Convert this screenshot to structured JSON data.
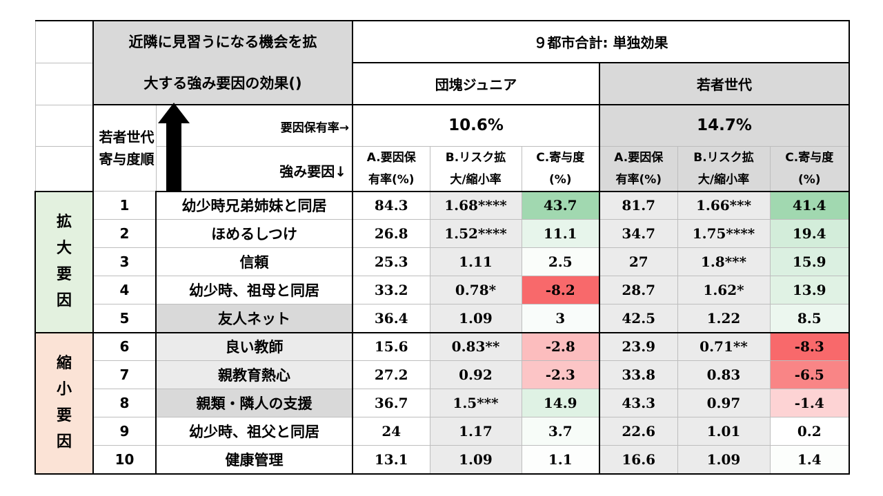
{
  "title_line1": "近隣に見習うになる機会を拡",
  "title_line2": "大する強み要因の効果()",
  "top_header": "９都市合計: 単独効果",
  "groups": [
    "団塊ジュニア",
    "若者世代"
  ],
  "rank_label": "若者世代寄与度順",
  "rate_label": "要因保有率→",
  "factor_label": "強み要因↓",
  "group_rates": [
    "10.6%",
    "14.7%"
  ],
  "col_a": [
    "A.要因保",
    "有率(%)"
  ],
  "col_b": [
    "B.リスク拡",
    "大/縮小率"
  ],
  "col_c": [
    "C.寄与度",
    "(%)"
  ],
  "side_expand": "拡大要因",
  "side_shrink": "縮小要因",
  "rows": [
    {
      "rank": "1",
      "factor": "幼少時兄弟姉妹と同居",
      "a1": "84.3",
      "b1": "1.68****",
      "c1": "43.7",
      "a2": "81.7",
      "b2": "1.66***",
      "c2": "41.4"
    },
    {
      "rank": "2",
      "factor": "ほめるしつけ",
      "a1": "26.8",
      "b1": "1.52****",
      "c1": "11.1",
      "a2": "34.7",
      "b2": "1.75****",
      "c2": "19.4"
    },
    {
      "rank": "3",
      "factor": "信頼",
      "a1": "25.3",
      "b1": "1.11",
      "c1": "2.5",
      "a2": "27",
      "b2": "1.8***",
      "c2": "15.9"
    },
    {
      "rank": "4",
      "factor": "幼少時、祖母と同居",
      "a1": "33.2",
      "b1": "0.78*",
      "c1": "-8.2",
      "a2": "28.7",
      "b2": "1.62*",
      "c2": "13.9"
    },
    {
      "rank": "5",
      "factor": "友人ネット",
      "a1": "36.4",
      "b1": "1.09",
      "c1": "3",
      "a2": "42.5",
      "b2": "1.22",
      "c2": "8.5"
    },
    {
      "rank": "6",
      "factor": "良い教師",
      "a1": "15.6",
      "b1": "0.83**",
      "c1": "-2.8",
      "a2": "23.9",
      "b2": "0.71**",
      "c2": "-8.3"
    },
    {
      "rank": "7",
      "factor": "親教育熱心",
      "a1": "27.2",
      "b1": "0.92",
      "c1": "-2.3",
      "a2": "33.8",
      "b2": "0.83",
      "c2": "-6.5"
    },
    {
      "rank": "8",
      "factor": "親類・隣人の支援",
      "a1": "36.7",
      "b1": "1.5***",
      "c1": "14.9",
      "a2": "43.3",
      "b2": "0.97",
      "c2": "-1.4"
    },
    {
      "rank": "9",
      "factor": "幼少時、祖父と同居",
      "a1": "24",
      "b1": "1.17",
      "c1": "3.7",
      "a2": "22.6",
      "b2": "1.01",
      "c2": "0.2"
    },
    {
      "rank": "10",
      "factor": "健康管理",
      "a1": "13.1",
      "b1": "1.09",
      "c1": "1.1",
      "a2": "16.6",
      "b2": "1.09",
      "c2": "1.4"
    }
  ],
  "colors": {
    "header_gray": "#d9d9d9",
    "light_gray": "#ebebeb",
    "expand_green": "#e3f1df",
    "shrink_peach": "#fbe3d6",
    "heat_pos": "#63be7b",
    "heat_neg": "#f8696b"
  }
}
